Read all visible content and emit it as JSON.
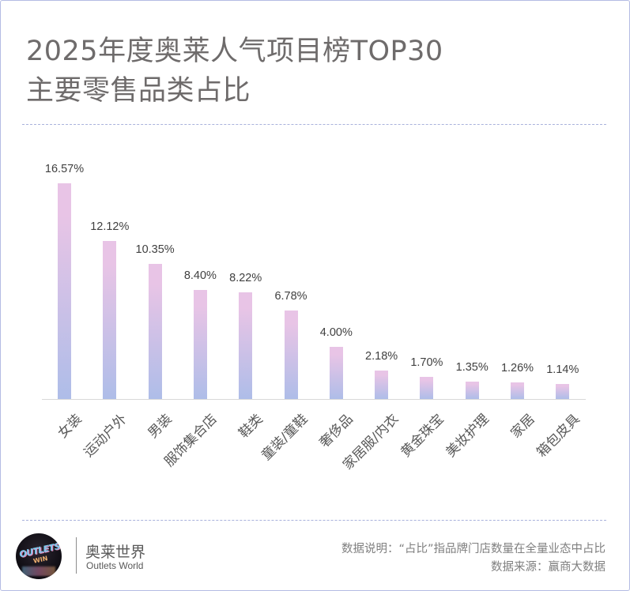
{
  "title": {
    "line1": "2025年度奥莱人气项目榜TOP30",
    "line2": "主要零售品类占比"
  },
  "chart_data": {
    "type": "bar",
    "title": "2025年度奥莱人气项目榜TOP30 主要零售品类占比",
    "xlabel": "",
    "ylabel": "",
    "categories": [
      "女装",
      "运动户外",
      "男装",
      "服饰集合店",
      "鞋类",
      "童装/童鞋",
      "奢侈品",
      "家居服/内衣",
      "黄金珠宝",
      "美妆护理",
      "家居",
      "箱包皮具"
    ],
    "values": [
      16.57,
      12.12,
      10.35,
      8.4,
      8.22,
      6.78,
      4.0,
      2.18,
      1.7,
      1.35,
      1.26,
      1.14
    ],
    "labels": [
      "16.57%",
      "12.12%",
      "10.35%",
      "8.40%",
      "8.22%",
      "6.78%",
      "4.00%",
      "2.18%",
      "1.70%",
      "1.35%",
      "1.26%",
      "1.14%"
    ],
    "unit": "%",
    "ylim": [
      0,
      18
    ],
    "grid": false,
    "legend": null,
    "colors": {
      "bar_top": "#e8c4e6",
      "bar_bottom": "#aebde8"
    }
  },
  "footer": {
    "brand_cn": "奥莱世界",
    "brand_en": "Outlets World",
    "logo_text_1": "OUTLETS",
    "logo_text_2": "WIN",
    "note": "数据说明：“占比”指品牌门店数量在全量业态中占比",
    "source": "数据来源：赢商大数据"
  }
}
